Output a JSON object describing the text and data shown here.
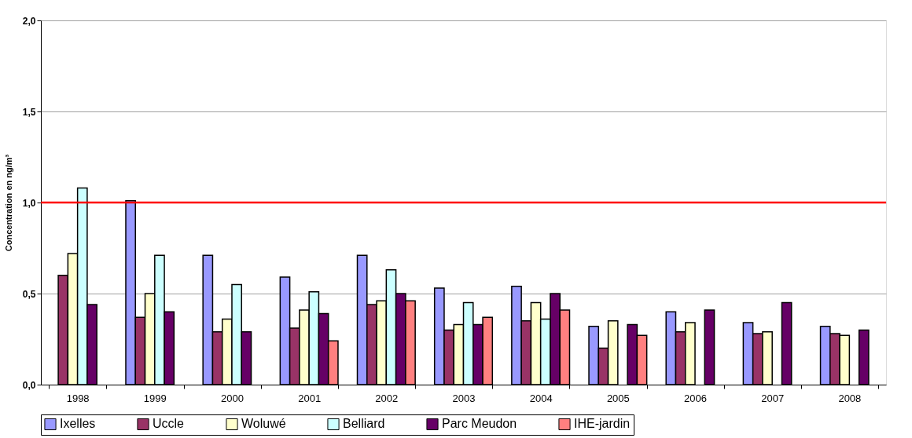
{
  "chart_data": {
    "type": "bar",
    "ylabel": "Concentration en ng/m³",
    "categories": [
      "1998",
      "1999",
      "2000",
      "2001",
      "2002",
      "2003",
      "2004",
      "2005",
      "2006",
      "2007",
      "2008"
    ],
    "series": [
      {
        "name": "Ixelles",
        "color": "#9999ff",
        "values": [
          null,
          1.01,
          0.71,
          0.59,
          0.71,
          0.53,
          0.54,
          0.32,
          0.4,
          0.34,
          0.32
        ]
      },
      {
        "name": "Uccle",
        "color": "#993366",
        "values": [
          0.6,
          0.37,
          0.29,
          0.31,
          0.44,
          0.3,
          0.35,
          0.2,
          0.29,
          0.28,
          0.28
        ]
      },
      {
        "name": "Woluwé",
        "color": "#ffffcc",
        "values": [
          0.72,
          0.5,
          0.36,
          0.41,
          0.46,
          0.33,
          0.45,
          0.35,
          0.34,
          0.29,
          0.27
        ]
      },
      {
        "name": "Belliard",
        "color": "#ccffff",
        "values": [
          1.08,
          0.71,
          0.55,
          0.51,
          0.63,
          0.45,
          0.36,
          null,
          null,
          null,
          null
        ]
      },
      {
        "name": "Parc Meudon",
        "color": "#660066",
        "values": [
          0.44,
          0.4,
          0.29,
          0.39,
          0.5,
          0.33,
          0.5,
          0.33,
          0.41,
          0.45,
          0.3
        ]
      },
      {
        "name": "IHE-jardin",
        "color": "#ff8080",
        "values": [
          null,
          null,
          null,
          0.24,
          0.46,
          0.37,
          0.41,
          0.27,
          null,
          null,
          null
        ]
      }
    ],
    "ylim": [
      0,
      2.0
    ],
    "yticks": [
      {
        "value": 0,
        "label": "0,0"
      },
      {
        "value": 0.5,
        "label": "0,5"
      },
      {
        "value": 1.0,
        "label": "1,0"
      },
      {
        "value": 1.5,
        "label": "1,5"
      },
      {
        "value": 2.0,
        "label": "2,0"
      }
    ],
    "ref_lines": [
      {
        "axis": "y",
        "value": 1.0,
        "color": "#ff0000"
      }
    ],
    "grid": "y",
    "legend": "bottom"
  }
}
